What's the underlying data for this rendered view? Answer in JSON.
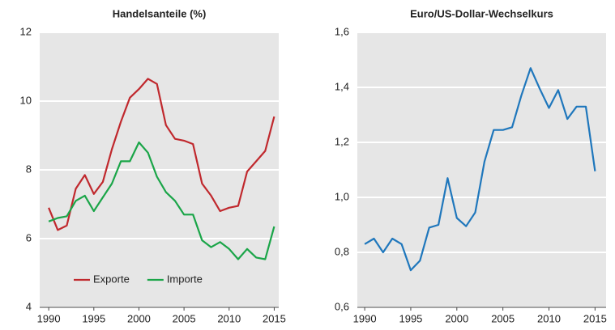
{
  "chart_data": [
    {
      "type": "line",
      "title": "Handelsanteile (%)",
      "x": [
        1990,
        1991,
        1992,
        1993,
        1994,
        1995,
        1996,
        1997,
        1998,
        1999,
        2000,
        2001,
        2002,
        2003,
        2004,
        2005,
        2006,
        2007,
        2008,
        2009,
        2010,
        2011,
        2012,
        2013,
        2014,
        2015
      ],
      "series": [
        {
          "name": "Exporte",
          "color": "#c0282d",
          "values": [
            6.9,
            6.25,
            6.38,
            7.45,
            7.85,
            7.3,
            7.65,
            8.6,
            9.4,
            10.1,
            10.35,
            10.65,
            10.5,
            9.3,
            8.9,
            8.85,
            8.75,
            7.6,
            7.25,
            6.8,
            6.9,
            6.95,
            7.95,
            8.25,
            8.55,
            9.55
          ]
        },
        {
          "name": "Importe",
          "color": "#1aa548",
          "values": [
            6.5,
            6.6,
            6.65,
            7.1,
            7.25,
            6.8,
            7.2,
            7.6,
            8.25,
            8.25,
            8.8,
            8.5,
            7.8,
            7.35,
            7.1,
            6.7,
            6.7,
            5.95,
            5.75,
            5.9,
            5.7,
            5.4,
            5.7,
            5.45,
            5.4,
            6.35
          ]
        }
      ],
      "xlim": [
        1989,
        2015.5
      ],
      "xticks": [
        1990,
        1995,
        2000,
        2005,
        2010,
        2015
      ],
      "ylim": [
        4,
        12
      ],
      "yticks": [
        4,
        6,
        8,
        10,
        12
      ],
      "grid": true,
      "legend": "lower left"
    },
    {
      "type": "line",
      "title": "Euro/US-Dollar-Wechselkurs",
      "x": [
        1990,
        1991,
        1992,
        1993,
        1994,
        1995,
        1996,
        1997,
        1998,
        1999,
        2000,
        2001,
        2002,
        2003,
        2004,
        2005,
        2006,
        2007,
        2008,
        2009,
        2010,
        2011,
        2012,
        2013,
        2014,
        2015
      ],
      "values": [
        0.83,
        0.85,
        0.8,
        0.85,
        0.83,
        0.735,
        0.77,
        0.89,
        0.9,
        1.07,
        0.925,
        0.895,
        0.945,
        1.13,
        1.245,
        1.245,
        1.255,
        1.37,
        1.47,
        1.395,
        1.325,
        1.39,
        1.285,
        1.33,
        1.33,
        1.095
      ],
      "color": "#1f77bc",
      "xlim": [
        1989.2,
        2016.2
      ],
      "xticks": [
        1990,
        1995,
        2000,
        2005,
        2010,
        2015
      ],
      "ylim": [
        0.6,
        1.6
      ],
      "yticks": [
        {
          "value": 0.6,
          "label": "0,6"
        },
        {
          "value": 0.8,
          "label": "0,8"
        },
        {
          "value": 1.0,
          "label": "1,0"
        },
        {
          "value": 1.2,
          "label": "1,2"
        },
        {
          "value": 1.4,
          "label": "1,4"
        },
        {
          "value": 1.6,
          "label": "1,6"
        }
      ],
      "grid": true
    }
  ]
}
